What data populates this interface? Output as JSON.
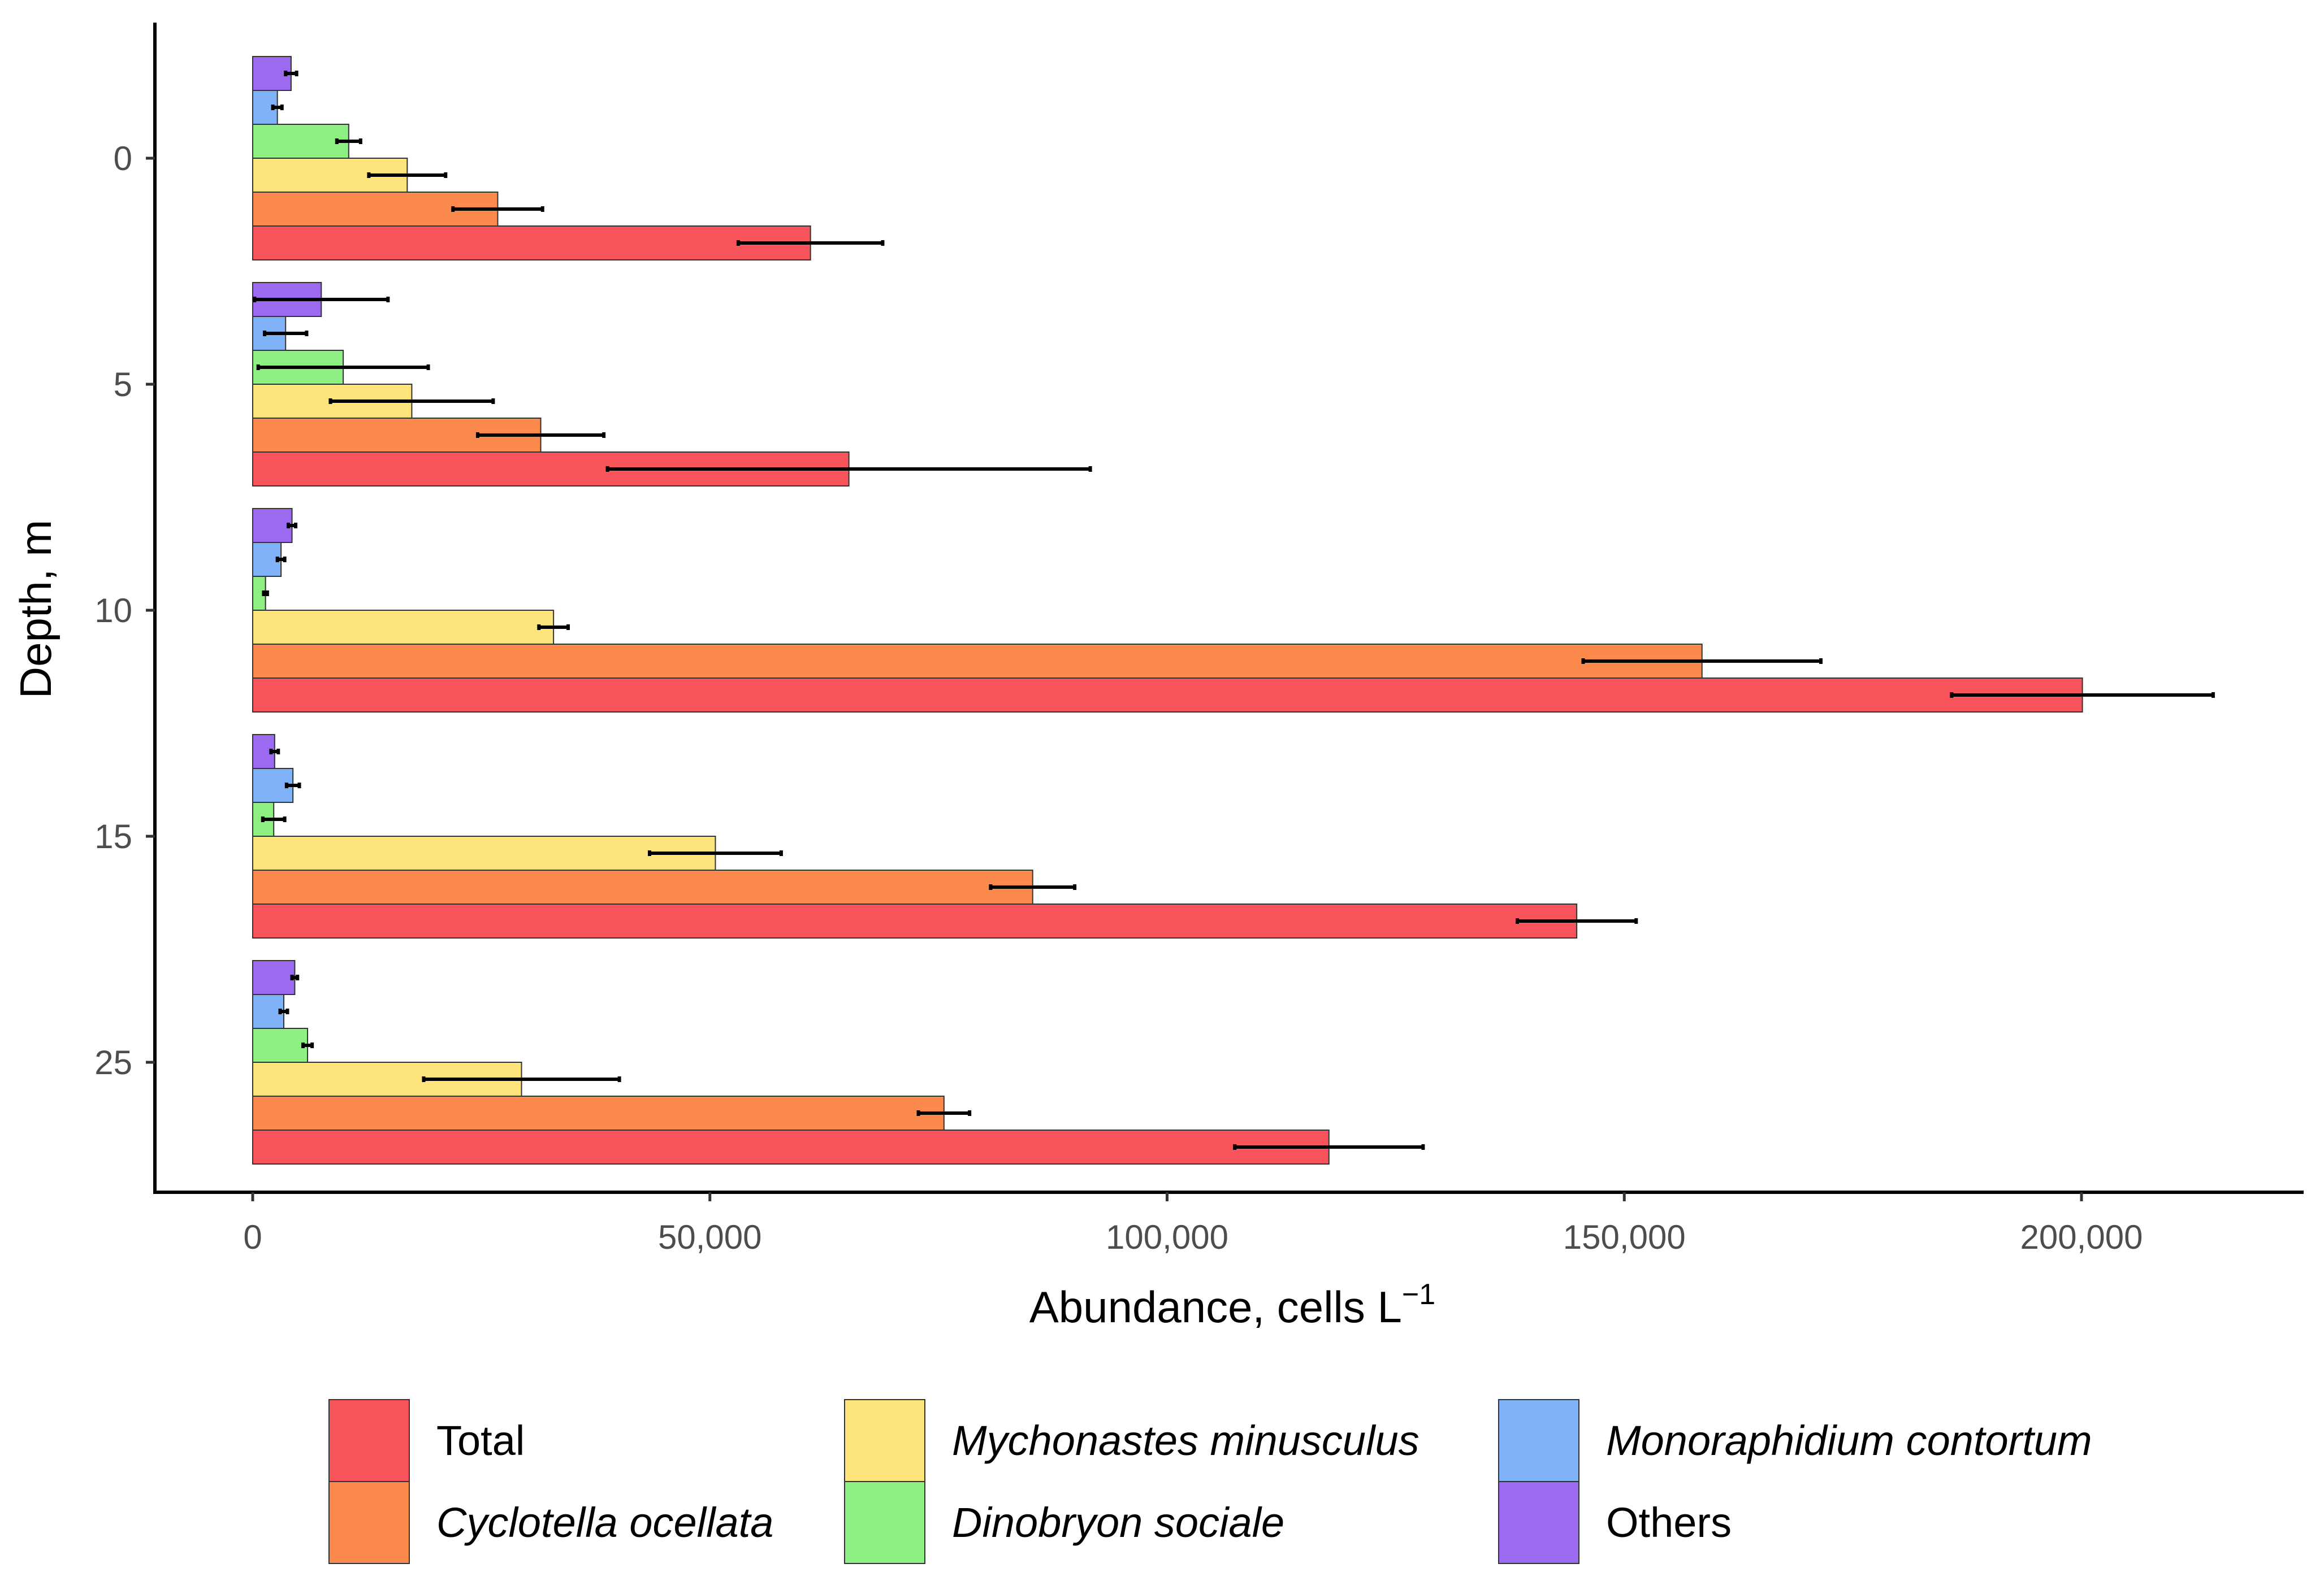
{
  "chart_data": {
    "type": "bar",
    "orientation": "horizontal",
    "xlabel": "Abundance, cells L",
    "xlabel_superscript": "−1",
    "ylabel": "Depth, m",
    "xlim": [
      -10000,
      224000
    ],
    "xticks": [
      0,
      50000,
      100000,
      150000,
      200000
    ],
    "xtick_labels": [
      "0",
      "50,000",
      "100,000",
      "150,000",
      "200,000"
    ],
    "categories": [
      "0",
      "5",
      "10",
      "15",
      "25"
    ],
    "grid": false,
    "legend_position": "bottom",
    "series": [
      {
        "name": "Total",
        "italic": false,
        "color": "#F8545B",
        "values": [
          61000,
          65200,
          200100,
          144800,
          117700
        ],
        "errors": [
          7900,
          26400,
          14300,
          6500,
          10300
        ]
      },
      {
        "name": "Cyclotella ocellata",
        "italic": true,
        "color": "#FC8A4D",
        "values": [
          26800,
          31500,
          158500,
          85300,
          75600
        ],
        "errors": [
          4900,
          6900,
          13000,
          4600,
          2800
        ]
      },
      {
        "name": "Mychonastes minusculus",
        "italic": true,
        "color": "#FDE57C",
        "values": [
          16900,
          17400,
          32900,
          50600,
          29400
        ],
        "errors": [
          4200,
          8900,
          1600,
          7200,
          10700
        ]
      },
      {
        "name": "Dinobryon sociale",
        "italic": true,
        "color": "#8EEF83",
        "values": [
          10500,
          9900,
          1400,
          2300,
          6000
        ],
        "errors": [
          1300,
          9300,
          200,
          1200,
          500
        ]
      },
      {
        "name": "Monoraphidium contortum",
        "italic": true,
        "color": "#80B2F8",
        "values": [
          2700,
          3600,
          3100,
          4400,
          3400
        ],
        "errors": [
          500,
          2300,
          400,
          700,
          400
        ]
      },
      {
        "name": "Others",
        "italic": false,
        "color": "#9C6AF1",
        "values": [
          4200,
          7500,
          4300,
          2400,
          4600
        ],
        "errors": [
          600,
          7300,
          400,
          400,
          300
        ]
      }
    ],
    "legend": {
      "columns": [
        [
          "Total",
          "Cyclotella ocellata"
        ],
        [
          "Mychonastes minusculus",
          "Dinobryon sociale"
        ],
        [
          "Monoraphidium contortum",
          "Others"
        ]
      ]
    }
  }
}
